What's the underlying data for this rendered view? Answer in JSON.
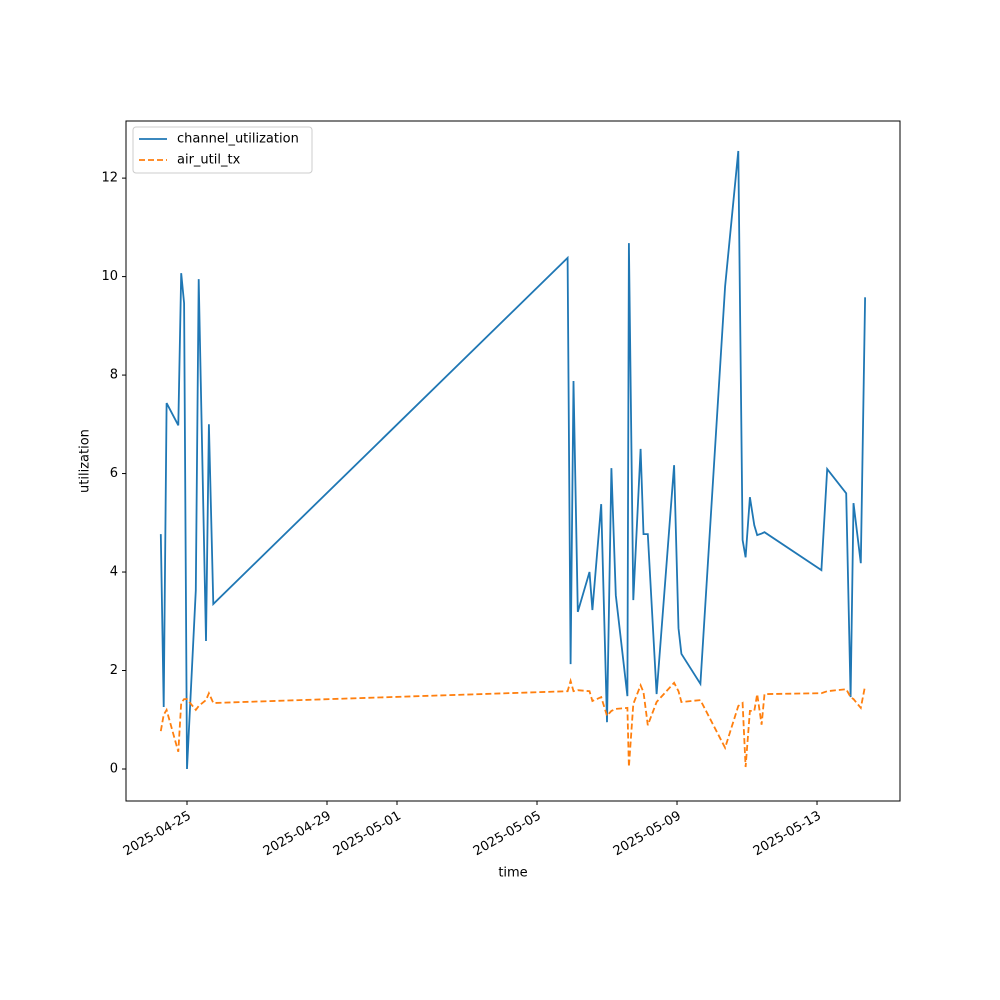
{
  "chart_data": {
    "type": "line",
    "xlabel": "time",
    "ylabel": "utilization",
    "x": [
      "2025-04-24T06:00",
      "2025-04-24T08:00",
      "2025-04-24T10:00",
      "2025-04-24T18:00",
      "2025-04-24T20:00",
      "2025-04-24T22:00",
      "2025-04-25T00:00",
      "2025-04-25T06:00",
      "2025-04-25T08:00",
      "2025-04-25T13:00",
      "2025-04-25T15:00",
      "2025-04-25T18:00",
      "2025-05-05T21:00",
      "2025-05-05T23:00",
      "2025-05-06T01:00",
      "2025-05-06T04:00",
      "2025-05-06T12:00",
      "2025-05-06T14:00",
      "2025-05-06T20:00",
      "2025-05-07T00:00",
      "2025-05-07T03:00",
      "2025-05-07T06:00",
      "2025-05-07T14:00",
      "2025-05-07T15:00",
      "2025-05-07T18:00",
      "2025-05-07T23:00",
      "2025-05-08T01:00",
      "2025-05-08T04:00",
      "2025-05-08T10:00",
      "2025-05-08T22:00",
      "2025-05-09T01:00",
      "2025-05-09T03:00",
      "2025-05-09T16:00",
      "2025-05-10T09:00",
      "2025-05-10T18:00",
      "2025-05-10T21:00",
      "2025-05-10T23:00",
      "2025-05-11T02:00",
      "2025-05-11T05:00",
      "2025-05-11T07:00",
      "2025-05-11T10:00",
      "2025-05-11T12:00",
      "2025-05-13T03:00",
      "2025-05-13T07:00",
      "2025-05-13T20:00",
      "2025-05-13T23:00",
      "2025-05-14T01:00",
      "2025-05-14T06:00",
      "2025-05-14T09:00"
    ],
    "series": [
      {
        "name": "channel_utilization",
        "color": "#1f77b4",
        "dash": false,
        "values": [
          4.77,
          1.26,
          7.43,
          6.98,
          10.07,
          9.46,
          0,
          3.63,
          9.95,
          2.6,
          7.0,
          3.35,
          10.38,
          2.13,
          7.88,
          3.19,
          4.0,
          3.23,
          5.38,
          0.95,
          6.11,
          3.53,
          1.48,
          10.68,
          3.43,
          6.5,
          4.77,
          4.77,
          1.52,
          6.17,
          2.86,
          2.34,
          1.73,
          9.8,
          12.55,
          4.65,
          4.3,
          5.52,
          4.95,
          4.75,
          4.78,
          4.81,
          4.04,
          6.09,
          5.6,
          1.46,
          5.4,
          4.18,
          9.58
        ]
      },
      {
        "name": "air_util_tx",
        "color": "#ff7f0e",
        "dash": true,
        "values": [
          0.77,
          1.1,
          1.2,
          0.35,
          1.34,
          1.42,
          1.42,
          1.2,
          1.28,
          1.4,
          1.54,
          1.34,
          1.58,
          1.79,
          1.58,
          1.6,
          1.58,
          1.38,
          1.46,
          1.08,
          1.18,
          1.22,
          1.24,
          0.04,
          1.32,
          1.7,
          1.56,
          0.89,
          1.36,
          1.75,
          1.58,
          1.36,
          1.4,
          0.43,
          1.28,
          1.34,
          0.04,
          1.18,
          1.18,
          1.52,
          0.9,
          1.52,
          1.54,
          1.58,
          1.62,
          1.46,
          1.42,
          1.24,
          1.69
        ]
      }
    ],
    "xlim": [
      "2025-04-23T06:10",
      "2025-05-15T08:54"
    ],
    "xticks": [
      "2025-04-25",
      "2025-04-29",
      "2025-05-01",
      "2025-05-05",
      "2025-05-09",
      "2025-05-13"
    ],
    "ylim": [
      -0.65,
      13.16
    ],
    "yticks": [
      0,
      2,
      4,
      6,
      8,
      10,
      12
    ],
    "legend": "upper left"
  }
}
